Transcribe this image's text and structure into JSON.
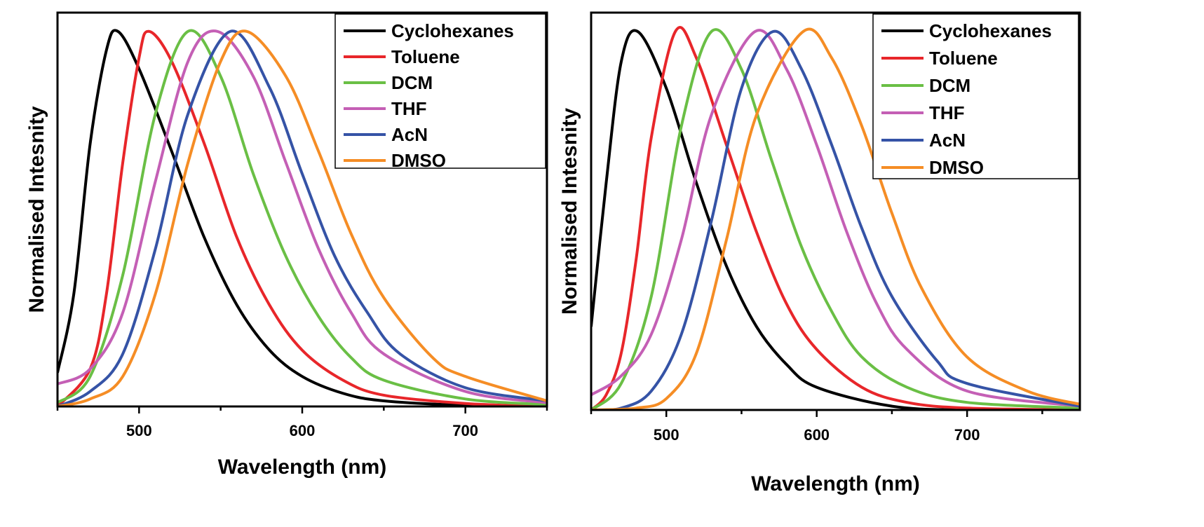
{
  "chart_data": [
    {
      "type": "line",
      "xlabel": "Wavelength (nm)",
      "ylabel": "Normalised Intesnity",
      "xlim": [
        450,
        750
      ],
      "ylim": [
        0,
        1.05
      ],
      "xticks": [
        500,
        600,
        700
      ],
      "grid": false,
      "legend_position": "top-right",
      "series": [
        {
          "name": "Cyclohexanes",
          "color": "#000000",
          "x": [
            450,
            460,
            470,
            480,
            487,
            500,
            520,
            540,
            560,
            580,
            600,
            625,
            650,
            700,
            750
          ],
          "y": [
            0.09,
            0.3,
            0.7,
            0.95,
            1.0,
            0.9,
            0.68,
            0.45,
            0.27,
            0.15,
            0.08,
            0.035,
            0.015,
            0.003,
            0
          ]
        },
        {
          "name": "Toluene",
          "color": "#e8262a",
          "x": [
            450,
            470,
            480,
            490,
            500,
            506,
            520,
            540,
            560,
            580,
            600,
            625,
            650,
            700,
            750
          ],
          "y": [
            0,
            0.1,
            0.3,
            0.65,
            0.93,
            1.0,
            0.92,
            0.7,
            0.45,
            0.27,
            0.15,
            0.07,
            0.03,
            0.008,
            0
          ]
        },
        {
          "name": "DCM",
          "color": "#6abf45",
          "x": [
            450,
            470,
            490,
            510,
            530,
            550,
            570,
            590,
            610,
            630,
            650,
            700,
            750
          ],
          "y": [
            0.01,
            0.08,
            0.35,
            0.78,
            1.0,
            0.88,
            0.62,
            0.4,
            0.24,
            0.13,
            0.07,
            0.02,
            0.005
          ]
        },
        {
          "name": "THF",
          "color": "#c45fb5",
          "x": [
            450,
            470,
            490,
            510,
            530,
            548,
            570,
            590,
            610,
            630,
            650,
            700,
            750
          ],
          "y": [
            0.06,
            0.1,
            0.25,
            0.6,
            0.92,
            1.0,
            0.88,
            0.65,
            0.42,
            0.25,
            0.14,
            0.04,
            0.01
          ]
        },
        {
          "name": "AcN",
          "color": "#3553a6",
          "x": [
            450,
            470,
            490,
            510,
            530,
            556,
            580,
            600,
            620,
            640,
            660,
            700,
            750
          ],
          "y": [
            0,
            0.04,
            0.14,
            0.42,
            0.78,
            1.0,
            0.85,
            0.62,
            0.4,
            0.25,
            0.14,
            0.05,
            0.015
          ]
        },
        {
          "name": "DMSO",
          "color": "#f58d25",
          "x": [
            450,
            470,
            490,
            510,
            530,
            550,
            566,
            590,
            610,
            630,
            650,
            680,
            700,
            750
          ],
          "y": [
            0,
            0.02,
            0.08,
            0.3,
            0.65,
            0.92,
            1.0,
            0.88,
            0.68,
            0.46,
            0.29,
            0.13,
            0.08,
            0.015
          ]
        }
      ]
    },
    {
      "type": "line",
      "xlabel": "Wavelength (nm)",
      "ylabel": "Normalised Intesnity",
      "xlim": [
        450,
        775
      ],
      "ylim": [
        0,
        1.05
      ],
      "xticks": [
        500,
        600,
        700
      ],
      "grid": false,
      "legend_position": "top-right",
      "series": [
        {
          "name": "Cyclohexanes",
          "color": "#000000",
          "x": [
            450,
            460,
            470,
            481,
            500,
            520,
            540,
            560,
            580,
            600,
            650,
            700,
            775
          ],
          "y": [
            0.22,
            0.6,
            0.92,
            1.0,
            0.85,
            0.6,
            0.38,
            0.22,
            0.12,
            0.06,
            0.01,
            0,
            0
          ]
        },
        {
          "name": "Toluene",
          "color": "#e8262a",
          "x": [
            450,
            460,
            470,
            480,
            490,
            506,
            520,
            540,
            560,
            580,
            600,
            630,
            660,
            700,
            775
          ],
          "y": [
            0,
            0.04,
            0.15,
            0.4,
            0.72,
            1.0,
            0.93,
            0.7,
            0.47,
            0.28,
            0.16,
            0.06,
            0.02,
            0.005,
            0
          ]
        },
        {
          "name": "DCM",
          "color": "#6abf45",
          "x": [
            450,
            470,
            490,
            510,
            530,
            550,
            570,
            590,
            610,
            630,
            660,
            700,
            775
          ],
          "y": [
            0,
            0.07,
            0.3,
            0.75,
            1.0,
            0.9,
            0.66,
            0.43,
            0.26,
            0.14,
            0.06,
            0.02,
            0.005
          ]
        },
        {
          "name": "THF",
          "color": "#c45fb5",
          "x": [
            450,
            470,
            490,
            510,
            530,
            559,
            580,
            600,
            620,
            640,
            660,
            700,
            775
          ],
          "y": [
            0.04,
            0.09,
            0.2,
            0.45,
            0.78,
            1.0,
            0.9,
            0.7,
            0.47,
            0.28,
            0.16,
            0.05,
            0.01
          ]
        },
        {
          "name": "AcN",
          "color": "#3553a6",
          "x": [
            450,
            470,
            490,
            510,
            530,
            550,
            571,
            590,
            610,
            630,
            650,
            680,
            700,
            775
          ],
          "y": [
            0,
            0.005,
            0.05,
            0.2,
            0.5,
            0.85,
            1.0,
            0.9,
            0.7,
            0.48,
            0.3,
            0.13,
            0.07,
            0.01
          ]
        },
        {
          "name": "DMSO",
          "color": "#f58d25",
          "x": [
            450,
            480,
            500,
            520,
            540,
            560,
            591,
            610,
            630,
            650,
            670,
            700,
            740,
            775
          ],
          "y": [
            0,
            0.005,
            0.03,
            0.15,
            0.45,
            0.78,
            1.0,
            0.93,
            0.75,
            0.52,
            0.32,
            0.14,
            0.05,
            0.015
          ]
        }
      ]
    }
  ]
}
